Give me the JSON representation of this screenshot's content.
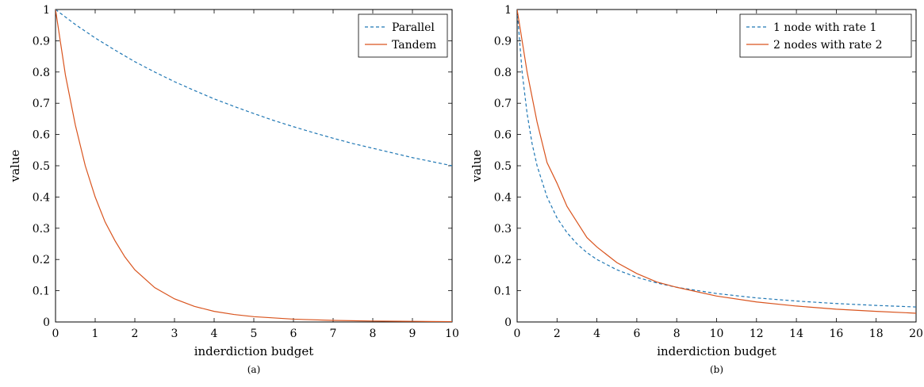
{
  "chart_data": [
    {
      "type": "line",
      "caption": "(a)",
      "xlabel": "inderdiction budget",
      "ylabel": "value",
      "xlim": [
        0,
        10
      ],
      "ylim": [
        0,
        1
      ],
      "xticks": [
        0,
        1,
        2,
        3,
        4,
        5,
        6,
        7,
        8,
        9,
        10
      ],
      "yticks": [
        0,
        0.1,
        0.2,
        0.3,
        0.4,
        0.5,
        0.6,
        0.7,
        0.8,
        0.9,
        1
      ],
      "grid": false,
      "legend_position": "top-right",
      "series": [
        {
          "name": "Parallel",
          "style": "dashed",
          "color": "#1f77b4",
          "x": [
            0,
            0.5,
            1,
            1.5,
            2,
            2.5,
            3,
            3.5,
            4,
            4.5,
            5,
            5.5,
            6,
            6.5,
            7,
            7.5,
            8,
            8.5,
            9,
            9.5,
            10
          ],
          "y": [
            1,
            0.952,
            0.909,
            0.87,
            0.833,
            0.8,
            0.769,
            0.741,
            0.714,
            0.69,
            0.667,
            0.645,
            0.625,
            0.606,
            0.588,
            0.571,
            0.556,
            0.541,
            0.526,
            0.513,
            0.5
          ]
        },
        {
          "name": "Tandem",
          "style": "solid",
          "color": "#d9541e",
          "x": [
            0,
            0.25,
            0.5,
            0.75,
            1,
            1.25,
            1.5,
            1.75,
            2,
            2.5,
            3,
            3.5,
            4,
            4.5,
            5,
            6,
            7,
            8,
            9,
            10
          ],
          "y": [
            1,
            0.79,
            0.63,
            0.5,
            0.4,
            0.32,
            0.26,
            0.208,
            0.167,
            0.11,
            0.074,
            0.05,
            0.034,
            0.024,
            0.017,
            0.009,
            0.005,
            0.003,
            0.002,
            0.001
          ]
        }
      ]
    },
    {
      "type": "line",
      "caption": "(b)",
      "xlabel": "inderdiction budget",
      "ylabel": "value",
      "xlim": [
        0,
        20
      ],
      "ylim": [
        0,
        1
      ],
      "xticks": [
        0,
        2,
        4,
        6,
        8,
        10,
        12,
        14,
        16,
        18,
        20
      ],
      "yticks": [
        0,
        0.1,
        0.2,
        0.3,
        0.4,
        0.5,
        0.6,
        0.7,
        0.8,
        0.9,
        1
      ],
      "grid": false,
      "legend_position": "top-right",
      "series": [
        {
          "name": "1 node with rate 1",
          "style": "dashed",
          "color": "#1f77b4",
          "x": [
            0,
            0.25,
            0.5,
            0.75,
            1,
            1.5,
            2,
            2.5,
            3,
            3.5,
            4,
            5,
            6,
            7,
            8,
            10,
            12,
            14,
            16,
            18,
            20
          ],
          "y": [
            1,
            0.8,
            0.667,
            0.571,
            0.5,
            0.4,
            0.333,
            0.286,
            0.25,
            0.222,
            0.2,
            0.167,
            0.143,
            0.125,
            0.111,
            0.091,
            0.077,
            0.067,
            0.059,
            0.053,
            0.048
          ]
        },
        {
          "name": "2 nodes with rate 2",
          "style": "solid",
          "color": "#d9541e",
          "x": [
            0,
            0.5,
            1,
            1.5,
            2,
            2.5,
            3,
            3.5,
            4,
            5,
            6,
            7,
            8,
            10,
            12,
            14,
            16,
            18,
            20
          ],
          "y": [
            1,
            0.8,
            0.64,
            0.51,
            0.444,
            0.37,
            0.32,
            0.27,
            0.24,
            0.19,
            0.155,
            0.128,
            0.111,
            0.083,
            0.064,
            0.051,
            0.041,
            0.034,
            0.028
          ]
        }
      ]
    }
  ]
}
